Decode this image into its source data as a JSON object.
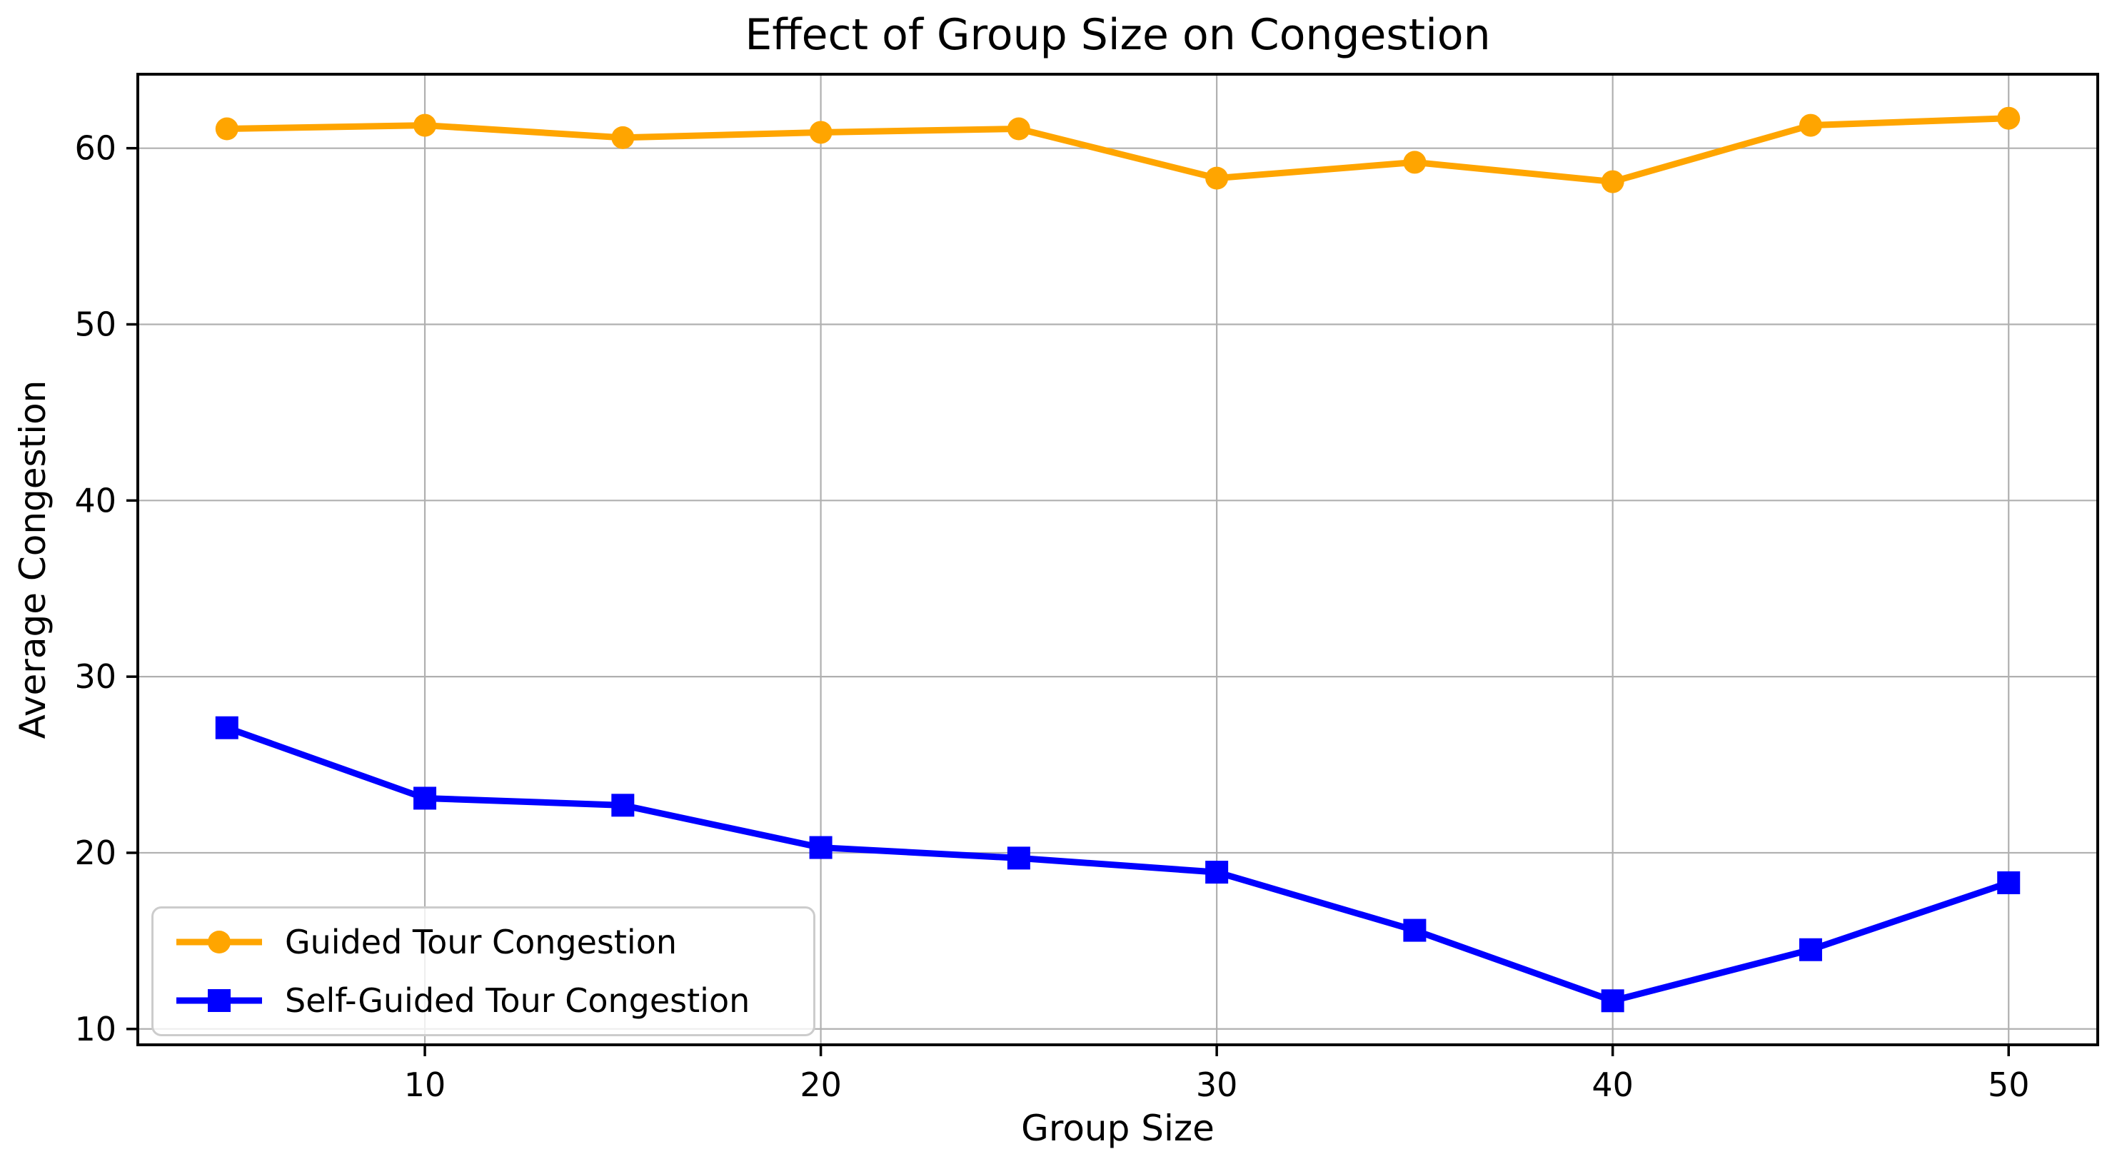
{
  "figure": {
    "background": "#ffffff"
  },
  "chart_data": {
    "type": "line",
    "title": "Effect of Group Size on Congestion",
    "xlabel": "Group Size",
    "ylabel": "Average Congestion",
    "x": [
      5,
      10,
      15,
      20,
      25,
      30,
      35,
      40,
      45,
      50
    ],
    "series": [
      {
        "name": "Guided Tour Congestion",
        "color": "#FFA500",
        "marker": "circle",
        "values": [
          61.1,
          61.3,
          60.6,
          60.9,
          61.1,
          58.3,
          59.2,
          58.1,
          61.3,
          61.7
        ]
      },
      {
        "name": "Self-Guided Tour Congestion",
        "color": "#0000FF",
        "marker": "square",
        "values": [
          27.1,
          23.1,
          22.7,
          20.3,
          19.7,
          18.9,
          15.6,
          11.6,
          14.5,
          18.3
        ]
      }
    ],
    "x_ticks": [
      10,
      20,
      30,
      40,
      50
    ],
    "y_ticks": [
      10,
      20,
      30,
      40,
      50,
      60
    ],
    "xlim": [
      2.75,
      52.25
    ],
    "ylim": [
      9.1,
      64.2
    ],
    "grid": true,
    "grid_color": "#b0b0b0",
    "axis_color": "#000000",
    "legend_position": "lower left"
  }
}
